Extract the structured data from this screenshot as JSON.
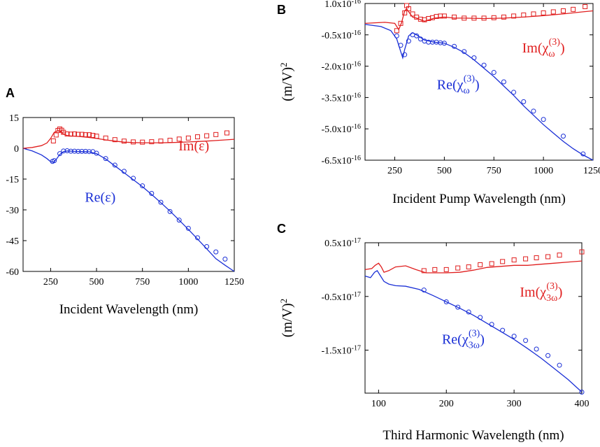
{
  "colors": {
    "re": "#1a2fd6",
    "im": "#e01e1e",
    "axis": "#000000"
  },
  "chart_data": [
    {
      "panel": "A",
      "type": "line",
      "xlabel": "Incident Wavelength (nm)",
      "ylabel": "",
      "xlim": [
        100,
        1250
      ],
      "ylim": [
        -60,
        15
      ],
      "xticks": [
        250,
        500,
        750,
        1000,
        1250
      ],
      "yticks": [
        15,
        0,
        -15,
        -30,
        -45,
        -60
      ],
      "xtick_labels": [
        "250",
        "500",
        "750",
        "1000",
        "1250"
      ],
      "ytick_labels": [
        "15",
        "0",
        "-15",
        "-30",
        "-45",
        "-60"
      ],
      "annotations": [
        {
          "text": "Im(ε)",
          "series": "im",
          "x": 1030,
          "y": -1
        },
        {
          "text": "Re(ε)",
          "series": "re",
          "x": 520,
          "y": -26
        }
      ],
      "series": [
        {
          "name": "Re(ε) fit",
          "key": "re",
          "style": "line",
          "x": [
            100,
            150,
            200,
            230,
            250,
            265,
            280,
            300,
            320,
            340,
            380,
            420,
            460,
            500,
            550,
            600,
            650,
            700,
            750,
            800,
            850,
            900,
            950,
            1000,
            1050,
            1100,
            1150,
            1200,
            1250
          ],
          "y": [
            0,
            -1.3,
            -3.2,
            -5,
            -6.5,
            -6.8,
            -5.5,
            -3,
            -1.6,
            -1.3,
            -1.5,
            -1.6,
            -1.7,
            -2.6,
            -5.2,
            -8.6,
            -11.9,
            -15.3,
            -18.7,
            -22.5,
            -26.5,
            -30.6,
            -35,
            -39.5,
            -44.2,
            -49,
            -53.8,
            -57,
            -60
          ]
        },
        {
          "name": "Re(ε) data",
          "key": "re",
          "style": "circle",
          "x": [
            260,
            270,
            300,
            320,
            340,
            360,
            380,
            400,
            420,
            440,
            460,
            480,
            500,
            550,
            600,
            650,
            700,
            750,
            800,
            850,
            900,
            950,
            1000,
            1050,
            1100,
            1150,
            1200
          ],
          "y": [
            -6.4,
            -6.0,
            -2.6,
            -1.3,
            -1.2,
            -1.4,
            -1.4,
            -1.5,
            -1.5,
            -1.5,
            -1.6,
            -1.6,
            -2.4,
            -5,
            -8.2,
            -11.2,
            -14.6,
            -18.3,
            -22,
            -26.3,
            -30.8,
            -35,
            -39,
            -43.6,
            -47.9,
            -50.5,
            -54
          ]
        },
        {
          "name": "Im(ε) fit",
          "key": "im",
          "style": "line",
          "x": [
            100,
            150,
            200,
            230,
            250,
            270,
            290,
            300,
            320,
            340,
            360,
            400,
            450,
            500,
            550,
            600,
            650,
            700,
            750,
            800,
            850,
            900,
            950,
            1000,
            1050,
            1100,
            1150,
            1200,
            1250
          ],
          "y": [
            0,
            0.4,
            1.3,
            2.6,
            4.8,
            7.8,
            8.6,
            8.3,
            7,
            6.2,
            6,
            5.8,
            5.4,
            4.8,
            4.1,
            3.5,
            3,
            2.8,
            2.7,
            2.7,
            2.7,
            2.8,
            2.9,
            3.1,
            3.3,
            3.5,
            3.8,
            4.1,
            4.4
          ]
        },
        {
          "name": "Im(ε) data",
          "key": "im",
          "style": "square",
          "x": [
            265,
            280,
            290,
            300,
            310,
            320,
            340,
            360,
            380,
            400,
            420,
            440,
            460,
            480,
            500,
            550,
            600,
            650,
            700,
            750,
            800,
            850,
            900,
            950,
            1000,
            1050,
            1100,
            1150,
            1210
          ],
          "y": [
            3.6,
            6.5,
            8.7,
            9.4,
            8.8,
            7.8,
            7,
            6.9,
            7,
            6.8,
            6.8,
            6.6,
            6.6,
            6.3,
            5.9,
            5,
            4.2,
            3.5,
            3.1,
            3,
            3.2,
            3.5,
            3.9,
            4.5,
            5,
            5.6,
            6.1,
            6.7,
            7.5
          ]
        }
      ]
    },
    {
      "panel": "B",
      "type": "line",
      "xlabel": "Incident Pump Wavelength (nm)",
      "ylabel": "(m/V)²",
      "ylabel_base": "(m/V)",
      "ylabel_sup": "2",
      "xlim": [
        100,
        1250
      ],
      "ylim": [
        -6.5,
        1.0
      ],
      "y_scale_note": "values in units of 1e-16",
      "xticks": [
        250,
        500,
        750,
        1000,
        1250
      ],
      "yticks": [
        1.0,
        -0.5,
        -2.0,
        -3.5,
        -5.0,
        -6.5
      ],
      "xtick_labels": [
        "250",
        "500",
        "750",
        "1000",
        "1250"
      ],
      "ytick_labels": [
        {
          "base": "1.0x10",
          "exp": "-16"
        },
        {
          "base": "-0.5x10",
          "exp": "-16"
        },
        {
          "base": "-2.0x10",
          "exp": "-16"
        },
        {
          "base": "-3.5x10",
          "exp": "-16"
        },
        {
          "base": "-5.0x10",
          "exp": "-16"
        },
        {
          "base": "-6.5x10",
          "exp": "-16"
        }
      ],
      "annotations": [
        {
          "text": "Im(χω(3))",
          "series": "im",
          "main": "Im(χ",
          "sub": "ω",
          "sup": "(3)",
          "close": ")",
          "x": 1000,
          "y": -1.35
        },
        {
          "text": "Re(χω(3))",
          "series": "re",
          "main": "Re(χ",
          "sub": "ω",
          "sup": "(3)",
          "close": ")",
          "x": 570,
          "y": -3.1
        }
      ],
      "series": [
        {
          "name": "Re(χω(3)) fit",
          "key": "re",
          "style": "line",
          "x": [
            100,
            180,
            230,
            260,
            280,
            290,
            300,
            320,
            340,
            360,
            400,
            450,
            500,
            550,
            600,
            650,
            700,
            750,
            800,
            850,
            900,
            950,
            1000,
            1050,
            1100,
            1150,
            1200,
            1250
          ],
          "y": [
            0,
            -0.1,
            -0.3,
            -0.7,
            -1.3,
            -1.6,
            -1.2,
            -0.55,
            -0.4,
            -0.5,
            -0.75,
            -0.85,
            -0.9,
            -1.1,
            -1.35,
            -1.7,
            -2.1,
            -2.5,
            -2.95,
            -3.4,
            -3.9,
            -4.35,
            -4.8,
            -5.2,
            -5.6,
            -5.95,
            -6.25,
            -6.5
          ]
        },
        {
          "name": "Re(χω(3)) data",
          "key": "re",
          "style": "circle",
          "x": [
            260,
            280,
            300,
            320,
            340,
            360,
            380,
            400,
            420,
            440,
            460,
            480,
            500,
            550,
            600,
            650,
            700,
            750,
            800,
            850,
            900,
            950,
            1000,
            1100,
            1200
          ],
          "y": [
            -0.55,
            -1.0,
            -1.45,
            -0.8,
            -0.5,
            -0.55,
            -0.7,
            -0.8,
            -0.85,
            -0.85,
            -0.85,
            -0.88,
            -0.9,
            -1.05,
            -1.3,
            -1.6,
            -1.95,
            -2.3,
            -2.75,
            -3.25,
            -3.7,
            -4.15,
            -4.55,
            -5.35,
            -6.2
          ]
        },
        {
          "name": "Im(χω(3)) fit",
          "key": "im",
          "style": "line",
          "x": [
            100,
            200,
            250,
            270,
            285,
            300,
            310,
            320,
            340,
            360,
            400,
            450,
            500,
            550,
            600,
            700,
            800,
            900,
            1000,
            1100,
            1200,
            1250
          ],
          "y": [
            0.05,
            0.1,
            0.05,
            -0.25,
            0.1,
            0.65,
            0.75,
            0.6,
            0.35,
            0.3,
            0.15,
            0.3,
            0.35,
            0.3,
            0.3,
            0.28,
            0.3,
            0.35,
            0.42,
            0.5,
            0.6,
            0.65
          ]
        },
        {
          "name": "Im(χω(3)) data",
          "key": "im",
          "style": "square",
          "x": [
            260,
            280,
            300,
            310,
            320,
            340,
            360,
            380,
            400,
            420,
            440,
            460,
            480,
            500,
            550,
            600,
            650,
            700,
            750,
            800,
            850,
            900,
            950,
            1000,
            1050,
            1100,
            1150,
            1210
          ],
          "y": [
            -0.3,
            0.05,
            0.55,
            0.9,
            0.75,
            0.5,
            0.35,
            0.25,
            0.22,
            0.28,
            0.32,
            0.38,
            0.4,
            0.4,
            0.35,
            0.3,
            0.3,
            0.3,
            0.32,
            0.35,
            0.4,
            0.45,
            0.5,
            0.55,
            0.6,
            0.65,
            0.72,
            0.85
          ]
        }
      ]
    },
    {
      "panel": "C",
      "type": "line",
      "xlabel": "Third Harmonic Wavelength (nm)",
      "ylabel": "(m/V)²",
      "ylabel_base": "(m/V)",
      "ylabel_sup": "2",
      "xlim": [
        80,
        400
      ],
      "ylim": [
        -2.3,
        0.5
      ],
      "y_scale_note": "values in units of 1e-17",
      "xticks": [
        100,
        200,
        300,
        400
      ],
      "yticks": [
        0.5,
        -0.5,
        -1.5
      ],
      "xtick_labels": [
        "100",
        "200",
        "300",
        "400"
      ],
      "ytick_labels": [
        {
          "base": "0.5x10",
          "exp": "-17"
        },
        {
          "base": "-0.5x10",
          "exp": "-17"
        },
        {
          "base": "-1.5x10",
          "exp": "-17"
        }
      ],
      "annotations": [
        {
          "text": "Im(χ3ω(3))",
          "series": "im",
          "main": "Im(χ",
          "sub": "3ω",
          "sup": "(3)",
          "close": ")",
          "x": 340,
          "y": -0.5
        },
        {
          "text": "Re(χ3ω(3))",
          "series": "re",
          "main": "Re(χ",
          "sub": "3ω",
          "sup": "(3)",
          "close": ")",
          "x": 225,
          "y": -1.38
        }
      ],
      "series": [
        {
          "name": "Re(χ3ω(3)) fit",
          "key": "re",
          "style": "line",
          "x": [
            80,
            88,
            94,
            98,
            102,
            108,
            115,
            125,
            140,
            160,
            180,
            200,
            220,
            240,
            260,
            280,
            300,
            320,
            340,
            360,
            380,
            400
          ],
          "y": [
            -0.12,
            -0.15,
            -0.05,
            -0.02,
            -0.1,
            -0.22,
            -0.27,
            -0.3,
            -0.31,
            -0.37,
            -0.48,
            -0.6,
            -0.72,
            -0.85,
            -1.0,
            -1.15,
            -1.3,
            -1.47,
            -1.65,
            -1.85,
            -2.05,
            -2.28
          ]
        },
        {
          "name": "Re(χ3ω(3)) data",
          "key": "re",
          "style": "circle",
          "x": [
            167,
            200,
            217,
            233,
            250,
            267,
            283,
            300,
            317,
            333,
            350,
            367,
            400
          ],
          "y": [
            -0.38,
            -0.6,
            -0.7,
            -0.79,
            -0.89,
            -1.02,
            -1.13,
            -1.24,
            -1.32,
            -1.48,
            -1.6,
            -1.78,
            -2.28
          ]
        },
        {
          "name": "Im(χ3ω(3)) fit",
          "key": "im",
          "style": "line",
          "x": [
            80,
            90,
            95,
            100,
            104,
            108,
            115,
            125,
            140,
            155,
            170,
            185,
            200,
            220,
            240,
            260,
            280,
            300,
            320,
            340,
            360,
            380,
            400
          ],
          "y": [
            0.0,
            0.02,
            0.08,
            0.12,
            0.05,
            -0.05,
            -0.02,
            0.05,
            0.07,
            0.0,
            -0.06,
            -0.06,
            -0.06,
            -0.05,
            -0.01,
            0.04,
            0.06,
            0.08,
            0.08,
            0.1,
            0.12,
            0.14,
            0.16
          ]
        },
        {
          "name": "Im(χ3ω(3)) data",
          "key": "im",
          "style": "square",
          "x": [
            167,
            183,
            200,
            217,
            233,
            250,
            267,
            283,
            300,
            317,
            333,
            350,
            367,
            400
          ],
          "y": [
            -0.02,
            0.0,
            0.0,
            0.03,
            0.05,
            0.09,
            0.11,
            0.15,
            0.18,
            0.2,
            0.22,
            0.24,
            0.27,
            0.33
          ]
        }
      ]
    }
  ]
}
